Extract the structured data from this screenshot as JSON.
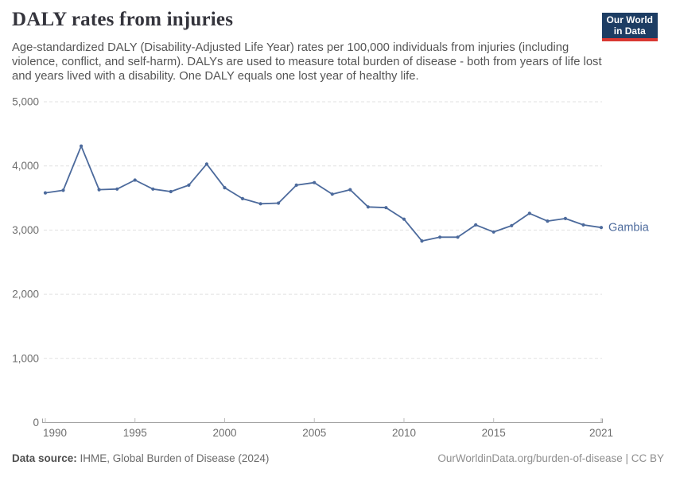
{
  "header": {
    "title": "DALY rates from injuries",
    "subtitle": "Age-standardized DALY (Disability-Adjusted Life Year) rates per 100,000 individuals from injuries (including violence, conflict, and self-harm). DALYs are used to measure total burden of disease - both from years of life lost and years lived with a disability. One DALY equals one lost year of healthy life.",
    "logo": {
      "line1": "Our World",
      "line2": "in Data",
      "bg_color": "#1d3d63",
      "accent_color": "#d93832"
    }
  },
  "chart_data": {
    "type": "line",
    "title": "DALY rates from injuries",
    "xlabel": "",
    "ylabel": "",
    "xlim": [
      1990,
      2021
    ],
    "ylim": [
      0,
      5000
    ],
    "grid": "horizontal-dashed",
    "legend_position": "end-of-line",
    "x_ticks": [
      1990,
      1995,
      2000,
      2005,
      2010,
      2015,
      2021
    ],
    "y_ticks": [
      0,
      1000,
      2000,
      3000,
      4000,
      5000
    ],
    "y_tick_labels": [
      "0",
      "1,000",
      "2,000",
      "3,000",
      "4,000",
      "5,000"
    ],
    "series": [
      {
        "name": "Gambia",
        "color": "#4c6a9c",
        "x": [
          1990,
          1991,
          1992,
          1993,
          1994,
          1995,
          1996,
          1997,
          1998,
          1999,
          2000,
          2001,
          2002,
          2003,
          2004,
          2005,
          2006,
          2007,
          2008,
          2009,
          2010,
          2011,
          2012,
          2013,
          2014,
          2015,
          2016,
          2017,
          2018,
          2019,
          2020,
          2021
        ],
        "values": [
          3580,
          3620,
          4310,
          3630,
          3640,
          3780,
          3640,
          3600,
          3700,
          4030,
          3660,
          3490,
          3410,
          3420,
          3700,
          3740,
          3560,
          3630,
          3360,
          3350,
          3170,
          2830,
          2890,
          2890,
          3080,
          2970,
          3070,
          3260,
          3140,
          3180,
          3080,
          3040
        ]
      }
    ]
  },
  "footer": {
    "datasource_label": "Data source:",
    "datasource_value": " IHME, Global Burden of Disease (2024)",
    "credit": "OurWorldinData.org/burden-of-disease | CC BY"
  }
}
